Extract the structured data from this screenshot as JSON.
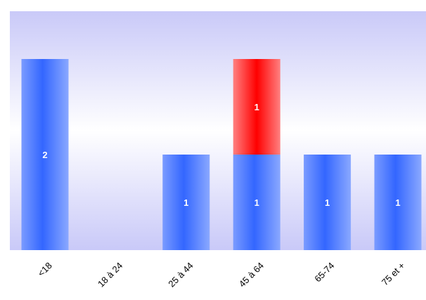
{
  "chart_data": {
    "type": "bar",
    "stacked": true,
    "categories": [
      "<18",
      "18 à 24",
      "25 à 44",
      "45 à 64",
      "65-74",
      "75 et +"
    ],
    "series": [
      {
        "values": [
          2,
          0,
          1,
          1,
          1,
          1
        ],
        "color": "#3366ff"
      },
      {
        "values": [
          0,
          0,
          0,
          1,
          0,
          0
        ],
        "color": "#ff0000"
      }
    ],
    "ylim": [
      0,
      2.5
    ],
    "grid": false,
    "legend": "none",
    "title": "",
    "xlabel": "",
    "ylabel": ""
  }
}
